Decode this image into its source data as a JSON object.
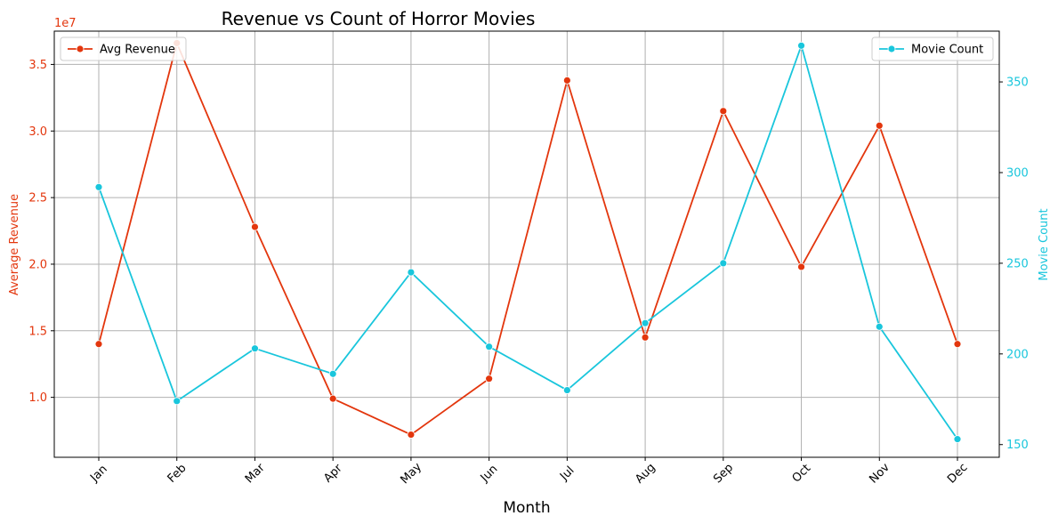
{
  "colors": {
    "revenue": "#e3360d",
    "count": "#19c6dc",
    "grid": "#b0b0b0",
    "axis": "#000000"
  },
  "chart_data": {
    "type": "line",
    "title": "Revenue vs Count of Horror Movies",
    "xlabel": "Month",
    "ylabel_left": "Average Revenue",
    "ylabel_right": "Movie Count",
    "left_offset_label": "1e7",
    "categories": [
      "Jan",
      "Feb",
      "Mar",
      "Apr",
      "May",
      "Jun",
      "Jul",
      "Aug",
      "Sep",
      "Oct",
      "Nov",
      "Dec"
    ],
    "grid": true,
    "left_axis": {
      "ylim": [
        0.55,
        3.75
      ],
      "ticks": [
        1.0,
        1.5,
        2.0,
        2.5,
        3.0,
        3.5
      ],
      "tick_labels": [
        "1.0",
        "1.5",
        "2.0",
        "2.5",
        "3.0",
        "3.5"
      ],
      "scale_note": "values in units of 1e7"
    },
    "right_axis": {
      "ylim": [
        143,
        378
      ],
      "ticks": [
        150,
        200,
        250,
        300,
        350
      ],
      "tick_labels": [
        "150",
        "200",
        "250",
        "300",
        "350"
      ]
    },
    "series": [
      {
        "name": "Avg Revenue",
        "axis": "left",
        "values": [
          1.4,
          3.66,
          2.28,
          0.99,
          0.72,
          1.14,
          3.38,
          1.45,
          3.15,
          1.98,
          3.04,
          1.4
        ]
      },
      {
        "name": "Movie Count",
        "axis": "right",
        "values": [
          292,
          174,
          203,
          189,
          245,
          204,
          180,
          217,
          250,
          370,
          215,
          153
        ]
      }
    ],
    "legend": [
      {
        "series": "Avg Revenue",
        "placement": "top-left"
      },
      {
        "series": "Movie Count",
        "placement": "top-right"
      }
    ]
  }
}
